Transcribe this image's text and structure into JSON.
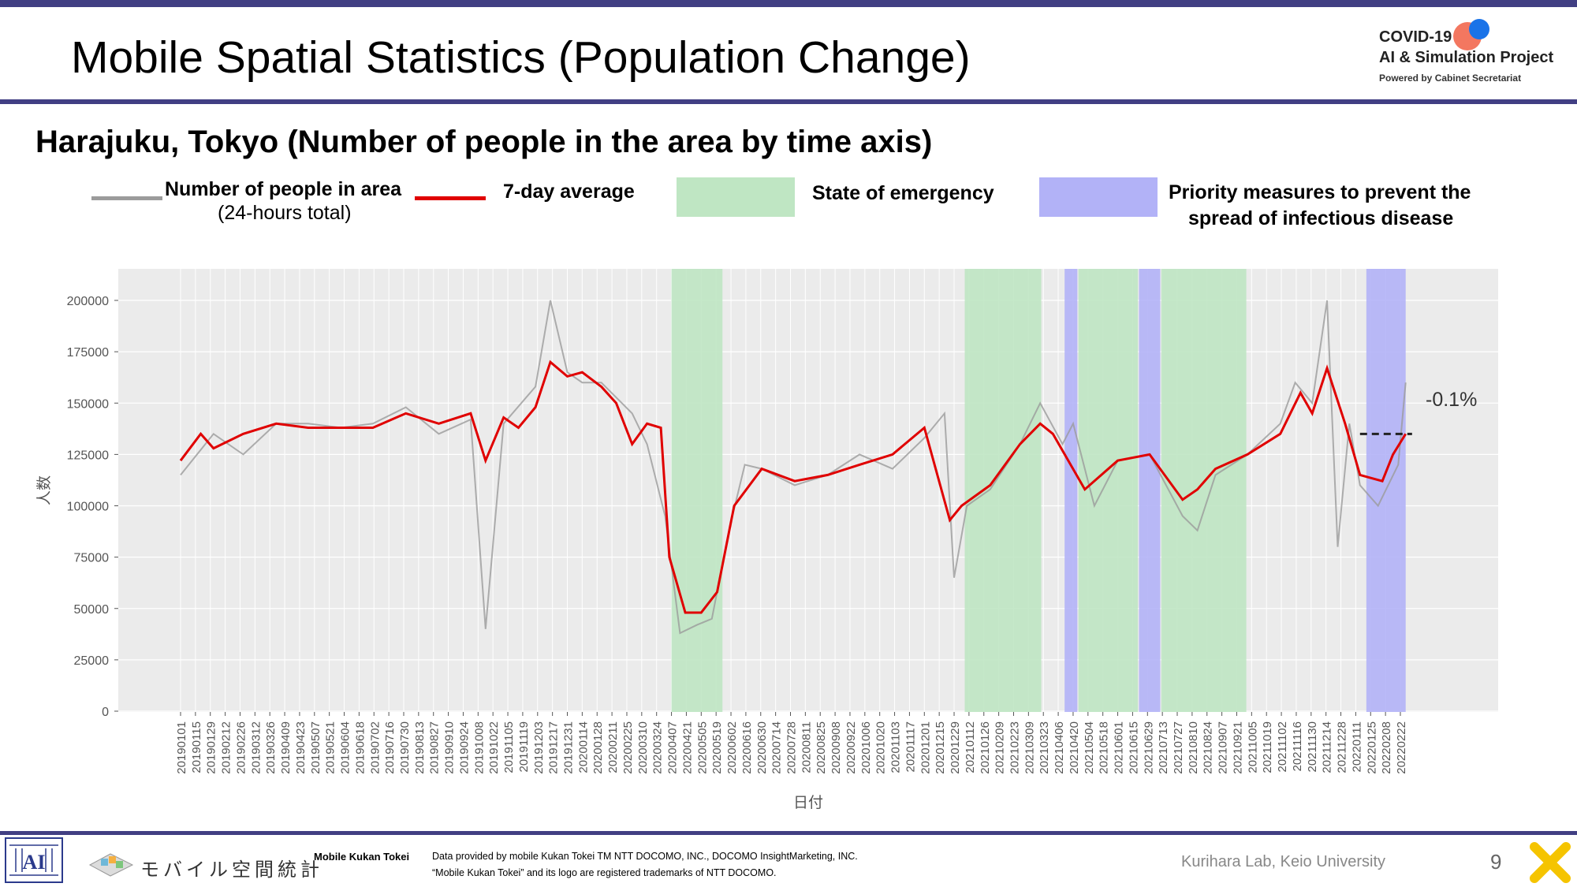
{
  "header": {
    "title": "Mobile Spatial Statistics (Population Change)",
    "logo_line1": "COVID-19",
    "logo_line2": "AI & Simulation Project",
    "logo_line3": "Powered by Cabinet Secretariat"
  },
  "subtitle": "Harajuku, Tokyo (Number of people in the area by time axis)",
  "legend": {
    "daily_label": "Number of people in area",
    "daily_sub": "(24-hours total)",
    "avg_label": "7-day average",
    "emergency_label": "State of emergency",
    "priority_label_1": "Priority measures to prevent the",
    "priority_label_2": "spread of infectious disease"
  },
  "colors": {
    "daily": "#9b9b9b",
    "average": "#e00000",
    "emergency": "#bfe6c3",
    "priority": "#b2b2f7",
    "plot_bg": "#ebebeb",
    "header_bar": "#413f83"
  },
  "chart_data": {
    "type": "line",
    "xlabel": "日付",
    "ylabel": "人数",
    "ylim": [
      0,
      215000
    ],
    "grid": true,
    "yticks": [
      0,
      25000,
      50000,
      75000,
      100000,
      125000,
      150000,
      175000,
      200000
    ],
    "x_start": "20190101",
    "x_step_days": 14,
    "xticks": [
      "20190101",
      "20190115",
      "20190129",
      "20190212",
      "20190226",
      "20190312",
      "20190326",
      "20190409",
      "20190423",
      "20190507",
      "20190521",
      "20190604",
      "20190618",
      "20190702",
      "20190716",
      "20190730",
      "20190813",
      "20190827",
      "20190910",
      "20190924",
      "20191008",
      "20191022",
      "20191105",
      "20191119",
      "20191203",
      "20191217",
      "20191231",
      "20200114",
      "20200128",
      "20200211",
      "20200225",
      "20200310",
      "20200324",
      "20200407",
      "20200421",
      "20200505",
      "20200519",
      "20200602",
      "20200616",
      "20200630",
      "20200714",
      "20200728",
      "20200811",
      "20200825",
      "20200908",
      "20200922",
      "20201006",
      "20201020",
      "20201103",
      "20201117",
      "20201201",
      "20201215",
      "20201229",
      "20210112",
      "20210126",
      "20210209",
      "20210223",
      "20210309",
      "20210323",
      "20210406",
      "20210420",
      "20210504",
      "20210518",
      "20210601",
      "20210615",
      "20210629",
      "20210713",
      "20210727",
      "20210810",
      "20210824",
      "20210907",
      "20210921",
      "20211005",
      "20211019",
      "20211102",
      "20211116",
      "20211130",
      "20211214",
      "20211228",
      "20220111",
      "20220125",
      "20220208",
      "20220222"
    ],
    "emergency_periods": [
      [
        "20200407",
        "20200525"
      ],
      [
        "20210108",
        "20210321"
      ],
      [
        "20210425",
        "20210620"
      ],
      [
        "20210712",
        "20210930"
      ]
    ],
    "priority_periods": [
      [
        "20210412",
        "20210424"
      ],
      [
        "20210621",
        "20210711"
      ],
      [
        "20220121",
        "20220227"
      ]
    ],
    "series": [
      {
        "name": "Number of people in area",
        "x": [
          "20190101",
          "20190201",
          "20190301",
          "20190401",
          "20190501",
          "20190601",
          "20190701",
          "20190801",
          "20190901",
          "20191001",
          "20191015",
          "20191101",
          "20191201",
          "20191215",
          "20191231",
          "20200114",
          "20200201",
          "20200301",
          "20200315",
          "20200401",
          "20200415",
          "20200501",
          "20200515",
          "20200601",
          "20200615",
          "20200701",
          "20200801",
          "20200901",
          "20201001",
          "20201101",
          "20201201",
          "20201220",
          "20201229",
          "20210110",
          "20210201",
          "20210301",
          "20210320",
          "20210410",
          "20210420",
          "20210510",
          "20210601",
          "20210701",
          "20210801",
          "20210815",
          "20210901",
          "20211001",
          "20211101",
          "20211115",
          "20211201",
          "20211215",
          "20211225",
          "20220105",
          "20220115",
          "20220201",
          "20220220",
          "20220227"
        ],
        "values": [
          115000,
          135000,
          125000,
          140000,
          140000,
          138000,
          140000,
          148000,
          135000,
          142000,
          40000,
          140000,
          158000,
          200000,
          165000,
          160000,
          160000,
          145000,
          130000,
          95000,
          38000,
          42000,
          45000,
          90000,
          120000,
          118000,
          110000,
          115000,
          125000,
          118000,
          133000,
          145000,
          65000,
          100000,
          108000,
          130000,
          150000,
          130000,
          140000,
          100000,
          122000,
          125000,
          95000,
          88000,
          115000,
          125000,
          140000,
          160000,
          150000,
          200000,
          80000,
          140000,
          110000,
          100000,
          120000,
          160000
        ]
      },
      {
        "name": "7-day average",
        "x": [
          "20190101",
          "20190120",
          "20190201",
          "20190301",
          "20190401",
          "20190501",
          "20190601",
          "20190701",
          "20190801",
          "20190901",
          "20191001",
          "20191015",
          "20191101",
          "20191115",
          "20191201",
          "20191215",
          "20191231",
          "20200114",
          "20200201",
          "20200215",
          "20200301",
          "20200315",
          "20200328",
          "20200405",
          "20200420",
          "20200505",
          "20200520",
          "20200605",
          "20200701",
          "20200801",
          "20200901",
          "20201001",
          "20201101",
          "20201201",
          "20201225",
          "20210105",
          "20210201",
          "20210301",
          "20210320",
          "20210401",
          "20210501",
          "20210601",
          "20210701",
          "20210801",
          "20210815",
          "20210901",
          "20211001",
          "20211101",
          "20211120",
          "20211201",
          "20211215",
          "20220101",
          "20220115",
          "20220205",
          "20220215",
          "20220227"
        ],
        "values": [
          122000,
          135000,
          128000,
          135000,
          140000,
          138000,
          138000,
          138000,
          145000,
          140000,
          145000,
          122000,
          143000,
          138000,
          148000,
          170000,
          163000,
          165000,
          158000,
          150000,
          130000,
          140000,
          138000,
          75000,
          48000,
          48000,
          58000,
          100000,
          118000,
          112000,
          115000,
          120000,
          125000,
          138000,
          93000,
          100000,
          110000,
          130000,
          140000,
          135000,
          108000,
          122000,
          125000,
          103000,
          108000,
          118000,
          125000,
          135000,
          155000,
          145000,
          167000,
          140000,
          115000,
          112000,
          125000,
          135000
        ]
      }
    ],
    "annotation": {
      "text": "-0.1%",
      "level": 135000,
      "from": "20220115",
      "to": "20220305"
    }
  },
  "footer": {
    "brand_name": "Mobile Kukan Tokei",
    "credit_line1": "Data provided by mobile Kukan Tokei TM NTT DOCOMO, INC., DOCOMO InsightMarketing, INC.",
    "credit_line2": "“Mobile Kukan Tokei” and its logo are registered trademarks of NTT DOCOMO.",
    "jp_logo_text": "モバイル空間統計",
    "lab": "Kurihara Lab, Keio University",
    "page_number": "9"
  }
}
